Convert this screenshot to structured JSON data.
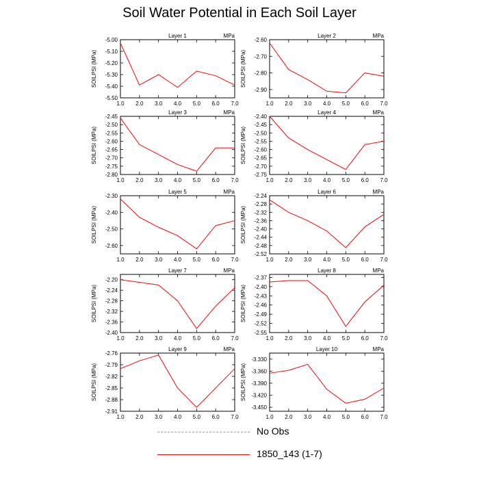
{
  "title": "Soil Water Potential in Each Soil Layer",
  "units_label": "MPa",
  "legend": [
    {
      "label": "No Obs",
      "color": "#8f8fe6",
      "dashed": true
    },
    {
      "label": "1850_143 (1-7)",
      "color": "#ff0000",
      "dashed": false
    }
  ],
  "chart_data": [
    {
      "type": "line",
      "title": "Layer 1",
      "ylabel": "SOILPSI  (MPa)",
      "xlim": [
        1,
        7
      ],
      "ylim": [
        -5.5,
        -5.0
      ],
      "yticks": [
        "-5.00",
        "-5.10",
        "-5.20",
        "-5.30",
        "-5.40",
        "-5.50"
      ],
      "xticks": [
        "1.0",
        "2.0",
        "3.0",
        "4.0",
        "5.0",
        "6.0",
        "7.0"
      ],
      "x": [
        1,
        2,
        3,
        4,
        5,
        6,
        7
      ],
      "series": [
        {
          "name": "1850_143 (1-7)",
          "values": [
            -5.03,
            -5.39,
            -5.3,
            -5.41,
            -5.27,
            -5.31,
            -5.39
          ]
        }
      ]
    },
    {
      "type": "line",
      "title": "Layer 2",
      "ylabel": "SOILPSI  (MPa)",
      "xlim": [
        1,
        7
      ],
      "ylim": [
        -2.95,
        -2.6
      ],
      "yticks": [
        "-2.60",
        "-2.70",
        "-2.80",
        "-2.90"
      ],
      "xticks": [
        "1.0",
        "2.0",
        "3.0",
        "4.0",
        "5.0",
        "6.0",
        "7.0"
      ],
      "x": [
        1,
        2,
        3,
        4,
        5,
        6,
        7
      ],
      "series": [
        {
          "name": "1850_143 (1-7)",
          "values": [
            -2.62,
            -2.78,
            -2.84,
            -2.91,
            -2.92,
            -2.8,
            -2.82
          ]
        }
      ]
    },
    {
      "type": "line",
      "title": "Layer 3",
      "ylabel": "SOILPSI  (MPa)",
      "xlim": [
        1,
        7
      ],
      "ylim": [
        -2.8,
        -2.45
      ],
      "yticks": [
        "-2.45",
        "-2.50",
        "-2.55",
        "-2.60",
        "-2.65",
        "-2.70",
        "-2.75",
        "-2.80"
      ],
      "xticks": [
        "1.0",
        "2.0",
        "3.0",
        "4.0",
        "5.0",
        "6.0",
        "7.0"
      ],
      "x": [
        1,
        2,
        3,
        4,
        5,
        6,
        7
      ],
      "series": [
        {
          "name": "1850_143 (1-7)",
          "values": [
            -2.46,
            -2.62,
            -2.68,
            -2.74,
            -2.78,
            -2.64,
            -2.64
          ]
        }
      ]
    },
    {
      "type": "line",
      "title": "Layer 4",
      "ylabel": "SOILPSI  (MPa)",
      "xlim": [
        1,
        7
      ],
      "ylim": [
        -2.75,
        -2.4
      ],
      "yticks": [
        "-2.40",
        "-2.45",
        "-2.50",
        "-2.55",
        "-2.60",
        "-2.65",
        "-2.70",
        "-2.75"
      ],
      "xticks": [
        "1.0",
        "2.0",
        "3.0",
        "4.0",
        "5.0",
        "6.0",
        "7.0"
      ],
      "x": [
        1,
        2,
        3,
        4,
        5,
        6,
        7
      ],
      "series": [
        {
          "name": "1850_143 (1-7)",
          "values": [
            -2.4,
            -2.53,
            -2.6,
            -2.66,
            -2.72,
            -2.57,
            -2.55
          ]
        }
      ]
    },
    {
      "type": "line",
      "title": "Layer 5",
      "ylabel": "SOILPSI  (MPa)",
      "xlim": [
        1,
        7
      ],
      "ylim": [
        -2.65,
        -2.3
      ],
      "yticks": [
        "-2.30",
        "-2.40",
        "-2.50",
        "-2.60"
      ],
      "xticks": [
        "1.0",
        "2.0",
        "3.0",
        "4.0",
        "5.0",
        "6.0",
        "7.0"
      ],
      "x": [
        1,
        2,
        3,
        4,
        5,
        6,
        7
      ],
      "series": [
        {
          "name": "1850_143 (1-7)",
          "values": [
            -2.32,
            -2.43,
            -2.49,
            -2.54,
            -2.62,
            -2.48,
            -2.45
          ]
        }
      ]
    },
    {
      "type": "line",
      "title": "Layer 6",
      "ylabel": "SOILPSI  (MPa)",
      "xlim": [
        1,
        7
      ],
      "ylim": [
        -2.52,
        -2.24
      ],
      "yticks": [
        "-2.24",
        "-2.28",
        "-2.32",
        "-2.36",
        "-2.40",
        "-2.44",
        "-2.48",
        "-2.52"
      ],
      "xticks": [
        "1.0",
        "2.0",
        "3.0",
        "4.0",
        "5.0",
        "6.0",
        "7.0"
      ],
      "x": [
        1,
        2,
        3,
        4,
        5,
        6,
        7
      ],
      "series": [
        {
          "name": "1850_143 (1-7)",
          "values": [
            -2.26,
            -2.32,
            -2.36,
            -2.41,
            -2.49,
            -2.39,
            -2.33
          ]
        }
      ]
    },
    {
      "type": "line",
      "title": "Layer 7",
      "ylabel": "SOILPSI  (MPa)",
      "xlim": [
        1,
        7
      ],
      "ylim": [
        -2.4,
        -2.18
      ],
      "yticks": [
        "-2.20",
        "-2.24",
        "-2.28",
        "-2.32",
        "-2.36",
        "-2.40"
      ],
      "xticks": [
        "1.0",
        "2.0",
        "3.0",
        "4.0",
        "5.0",
        "6.0",
        "7.0"
      ],
      "x": [
        1,
        2,
        3,
        4,
        5,
        6,
        7
      ],
      "series": [
        {
          "name": "1850_143 (1-7)",
          "values": [
            -2.2,
            -2.21,
            -2.22,
            -2.28,
            -2.385,
            -2.3,
            -2.23
          ]
        }
      ]
    },
    {
      "type": "line",
      "title": "Layer 8",
      "ylabel": "SOILPSI  (MPa)",
      "xlim": [
        1,
        7
      ],
      "ylim": [
        -2.55,
        -2.36
      ],
      "yticks": [
        "-2.37",
        "-2.40",
        "-2.43",
        "-2.46",
        "-2.49",
        "-2.52",
        "-2.55"
      ],
      "xticks": [
        "1.0",
        "2.0",
        "3.0",
        "4.0",
        "5.0",
        "6.0",
        "7.0"
      ],
      "x": [
        1,
        2,
        3,
        4,
        5,
        6,
        7
      ],
      "series": [
        {
          "name": "1850_143 (1-7)",
          "values": [
            -2.385,
            -2.38,
            -2.38,
            -2.43,
            -2.53,
            -2.45,
            -2.395
          ]
        }
      ]
    },
    {
      "type": "line",
      "title": "Layer 9",
      "ylabel": "SOILPSI  (MPa)",
      "xlim": [
        1,
        7
      ],
      "ylim": [
        -2.91,
        -2.76
      ],
      "yticks": [
        "-2.76",
        "-2.79",
        "-2.82",
        "-2.85",
        "-2.88",
        "-2.91"
      ],
      "xticks": [
        "1.0",
        "2.0",
        "3.0",
        "4.0",
        "5.0",
        "6.0",
        "7.0"
      ],
      "x": [
        1,
        2,
        3,
        4,
        5,
        6,
        7
      ],
      "series": [
        {
          "name": "1850_143 (1-7)",
          "values": [
            -2.8,
            -2.78,
            -2.765,
            -2.85,
            -2.9,
            -2.85,
            -2.8
          ]
        }
      ]
    },
    {
      "type": "line",
      "title": "Layer 10",
      "ylabel": "SOILPSI  (MPa)",
      "xlim": [
        1,
        7
      ],
      "ylim": [
        -3.46,
        -3.315
      ],
      "yticks": [
        "-3.330",
        "-3.360",
        "-3.390",
        "-3.420",
        "-3.450"
      ],
      "xticks": [
        "1.0",
        "2.0",
        "3.0",
        "4.0",
        "5.0",
        "6.0",
        "7.0"
      ],
      "x": [
        1,
        2,
        3,
        4,
        5,
        6,
        7
      ],
      "series": [
        {
          "name": "1850_143 (1-7)",
          "values": [
            -3.365,
            -3.358,
            -3.343,
            -3.405,
            -3.44,
            -3.43,
            -3.402
          ]
        }
      ]
    }
  ]
}
